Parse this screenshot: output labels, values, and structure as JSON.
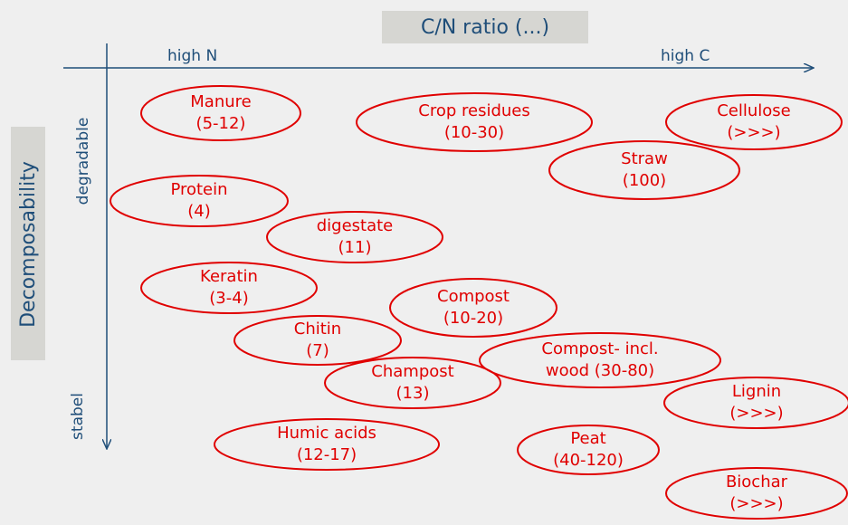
{
  "title": "C/N ratio (...)",
  "x_axis": {
    "left": "high N",
    "right": "high C"
  },
  "y_axis": {
    "label": "Decomposability",
    "top": "degradable",
    "bottom": "stabel"
  },
  "nodes": [
    {
      "lines": [
        "Manure",
        "(5-12)"
      ]
    },
    {
      "lines": [
        "Crop residues",
        "(10-30)"
      ]
    },
    {
      "lines": [
        "Cellulose",
        "(>>>)"
      ]
    },
    {
      "lines": [
        "Straw",
        "(100)"
      ]
    },
    {
      "lines": [
        "Protein",
        "(4)"
      ]
    },
    {
      "lines": [
        "digestate",
        "(11)"
      ]
    },
    {
      "lines": [
        "Keratin",
        "(3-4)"
      ]
    },
    {
      "lines": [
        "Compost",
        "(10-20)"
      ]
    },
    {
      "lines": [
        "Chitin",
        "(7)"
      ]
    },
    {
      "lines": [
        "Compost- incl.",
        "wood (30-80)"
      ]
    },
    {
      "lines": [
        "Champost",
        "(13)"
      ]
    },
    {
      "lines": [
        "Lignin",
        "(>>>)"
      ]
    },
    {
      "lines": [
        "Humic acids",
        "(12-17)"
      ]
    },
    {
      "lines": [
        "Peat",
        "(40-120)"
      ]
    },
    {
      "lines": [
        "Biochar",
        "(>>>)"
      ]
    }
  ]
}
